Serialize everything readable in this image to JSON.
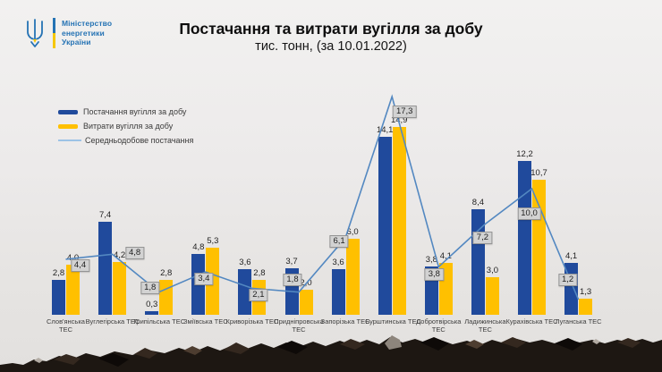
{
  "logo": {
    "org_lines": [
      "Міністерство",
      "енергетики",
      "України"
    ]
  },
  "header": {
    "title": "Постачання та витрати вугілля за добу",
    "subtitle": "тис. тонн, (за 10.01.2022)"
  },
  "legend": {
    "items": [
      {
        "label": "Постачання вугілля за добу",
        "type": "bar",
        "color": "#204a9c"
      },
      {
        "label": "Витрати вугілля за добу",
        "type": "bar",
        "color": "#ffc000"
      },
      {
        "label": "Середньодобове постачання",
        "type": "line",
        "color": "#9dc3e6"
      }
    ]
  },
  "chart_data": {
    "type": "bar",
    "title": "Постачання та витрати вугілля за добу",
    "subtitle": "тис. тонн, (за 10.01.2022)",
    "unit": "тис. тонн",
    "date": "10.01.2022",
    "categories": [
      "Слов'янська ТЕС",
      "Вуглегірська ТЕС",
      "Трипільська ТЕС",
      "Зміївська ТЕС",
      "Криворізька ТЕС",
      "Придніпровська ТЕС",
      "Запорізька ТЕС",
      "Бурштинська ТЕС",
      "Добротвірська ТЕС",
      "Ладижинська ТЕС",
      "Курахівська ТЕС",
      "Луганська ТЕС"
    ],
    "category_label_lines": [
      [
        "Слов'янська",
        "ТЕС"
      ],
      [
        "Вуглегірська ТЕС"
      ],
      [
        "Трипільська ТЕС"
      ],
      [
        "Зміївська ТЕС"
      ],
      [
        "Криворізька ТЕС"
      ],
      [
        "Придніпровська",
        "ТЕС"
      ],
      [
        "Запорізька ТЕС"
      ],
      [
        "Бурштинська ТЕС"
      ],
      [
        "Добротвірська",
        "ТЕС"
      ],
      [
        "Ладижинська",
        "ТЕС"
      ],
      [
        "Курахівська ТЕС"
      ],
      [
        "Луганська ТЕС"
      ]
    ],
    "series": [
      {
        "name": "Постачання вугілля за добу",
        "type": "bar",
        "color": "#204a9c",
        "values": [
          2.8,
          7.4,
          0.3,
          4.8,
          3.6,
          3.7,
          3.6,
          14.1,
          3.8,
          8.4,
          12.2,
          4.1
        ]
      },
      {
        "name": "Витрати вугілля за добу",
        "type": "bar",
        "color": "#ffc000",
        "values": [
          4.0,
          4.2,
          2.8,
          5.3,
          2.8,
          2.0,
          6.0,
          14.9,
          4.1,
          3.0,
          10.7,
          1.3
        ]
      },
      {
        "name": "Середньодобове постачання",
        "type": "line",
        "color": "#5388c1",
        "values": [
          4.4,
          4.8,
          1.8,
          3.4,
          2.1,
          1.8,
          6.1,
          17.3,
          3.8,
          7.2,
          10.0,
          1.2
        ]
      }
    ],
    "value_format": "decimal-comma, 1 digit",
    "ylim": [
      0,
      18
    ],
    "grid": false,
    "legend_position": "top-left"
  }
}
